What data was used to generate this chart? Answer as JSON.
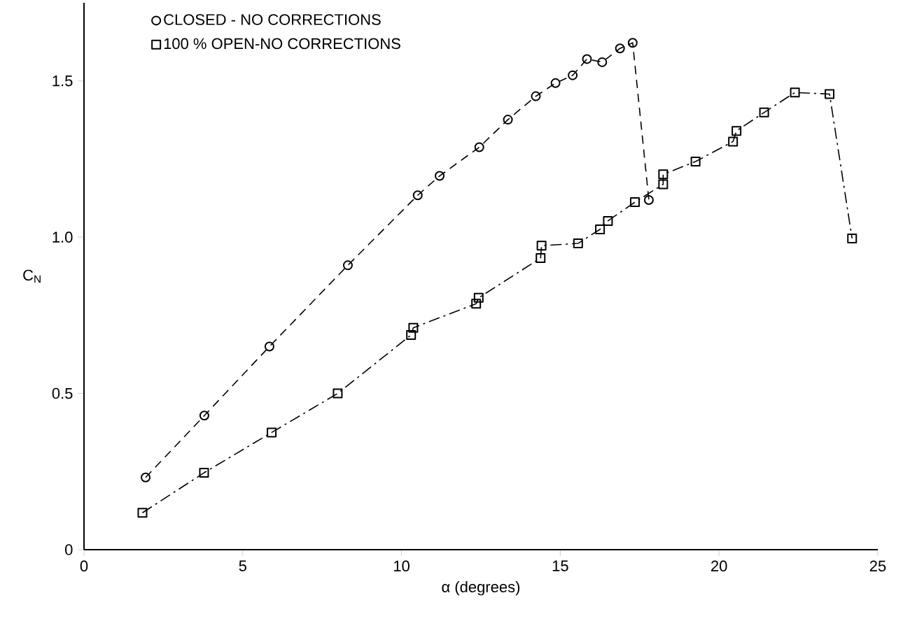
{
  "chart_data": {
    "type": "line",
    "xlabel": "α (degrees)",
    "ylabel": "C$_{N}$",
    "xlim": [
      0,
      25
    ],
    "ylim": [
      0,
      1.75
    ],
    "xticks": [
      0,
      5,
      10,
      15,
      20,
      25
    ],
    "yticks": [
      0,
      0.5,
      {
        "value": 1,
        "label": "1.0"
      },
      1.5
    ],
    "legend": "top left",
    "grid": false,
    "series": [
      {
        "name": "CLOSED - NO CORRECTIONS",
        "color": "#000000",
        "marker": "circle",
        "line_style": "dashed",
        "x": [
          1.94,
          3.79,
          5.84,
          8.31,
          10.51,
          11.2,
          12.45,
          13.35,
          14.23,
          14.85,
          15.39,
          15.84,
          16.32,
          16.88,
          17.28,
          17.79
        ],
        "values": [
          0.231,
          0.429,
          0.65,
          0.91,
          1.134,
          1.196,
          1.288,
          1.376,
          1.451,
          1.493,
          1.518,
          1.57,
          1.56,
          1.604,
          1.622,
          1.119
        ]
      },
      {
        "name": "100 % OPEN-NO CORRECTIONS",
        "color": "#000000",
        "marker": "square",
        "line_style": "dashdot",
        "x": [
          1.84,
          3.78,
          5.91,
          7.99,
          10.3,
          10.37,
          12.35,
          12.43,
          14.38,
          14.41,
          15.56,
          16.25,
          16.5,
          17.35,
          18.24,
          18.24,
          19.26,
          20.44,
          20.55,
          21.42,
          22.39,
          23.48,
          24.19
        ],
        "values": [
          0.118,
          0.246,
          0.375,
          0.5,
          0.687,
          0.71,
          0.787,
          0.806,
          0.933,
          0.973,
          0.98,
          1.025,
          1.052,
          1.112,
          1.169,
          1.201,
          1.242,
          1.306,
          1.34,
          1.399,
          1.463,
          1.458,
          0.996
        ]
      }
    ]
  }
}
